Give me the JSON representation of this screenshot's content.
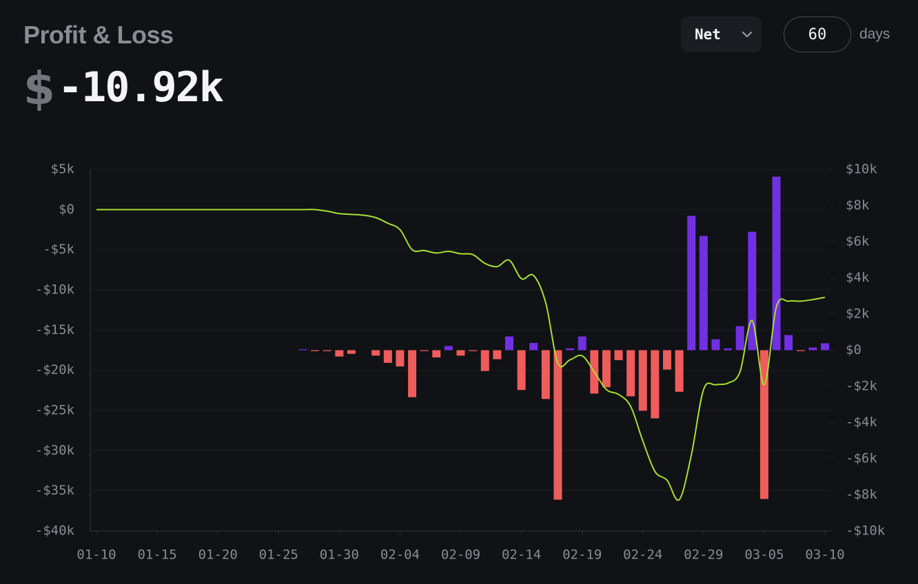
{
  "header": {
    "title": "Profit & Loss",
    "currency": "$",
    "total": "-10.92k"
  },
  "controls": {
    "mode": "Net",
    "days": "60",
    "days_unit": "days"
  },
  "chart_data": {
    "type": "bar",
    "x": [
      "01-10",
      "01-11",
      "01-12",
      "01-13",
      "01-14",
      "01-15",
      "01-16",
      "01-17",
      "01-18",
      "01-19",
      "01-20",
      "01-21",
      "01-22",
      "01-23",
      "01-24",
      "01-25",
      "01-26",
      "01-27",
      "01-28",
      "01-29",
      "01-30",
      "01-31",
      "02-01",
      "02-02",
      "02-03",
      "02-04",
      "02-05",
      "02-06",
      "02-07",
      "02-08",
      "02-09",
      "02-10",
      "02-11",
      "02-12",
      "02-13",
      "02-14",
      "02-15",
      "02-16",
      "02-17",
      "02-18",
      "02-19",
      "02-20",
      "02-21",
      "02-22",
      "02-23",
      "02-24",
      "02-25",
      "02-26",
      "02-27",
      "02-28",
      "02-29",
      "03-01",
      "03-02",
      "03-03",
      "03-04",
      "03-05",
      "03-06",
      "03-07",
      "03-08",
      "03-09",
      "03-10"
    ],
    "xticks": [
      "01-10",
      "01-15",
      "01-20",
      "01-25",
      "01-30",
      "02-04",
      "02-09",
      "02-14",
      "02-19",
      "02-24",
      "02-29",
      "03-05",
      "03-10"
    ],
    "ylim": [
      -40000,
      5000
    ],
    "yticks": [
      {
        "value": 5000,
        "label": "$5k"
      },
      {
        "value": 0,
        "label": "$0"
      },
      {
        "value": -5000,
        "label": "-$5k"
      },
      {
        "value": -10000,
        "label": "-$10k"
      },
      {
        "value": -15000,
        "label": "-$15k"
      },
      {
        "value": -20000,
        "label": "-$20k"
      },
      {
        "value": -25000,
        "label": "-$25k"
      },
      {
        "value": -30000,
        "label": "-$30k"
      },
      {
        "value": -35000,
        "label": "-$35k"
      },
      {
        "value": -40000,
        "label": "-$40k"
      }
    ],
    "y2lim": [
      -10000,
      10000
    ],
    "y2ticks": [
      {
        "value": 10000,
        "label": "$10k"
      },
      {
        "value": 8000,
        "label": "$8k"
      },
      {
        "value": 6000,
        "label": "$6k"
      },
      {
        "value": 4000,
        "label": "$4k"
      },
      {
        "value": 2000,
        "label": "$2k"
      },
      {
        "value": 0,
        "label": "$0"
      },
      {
        "value": -2000,
        "label": "-$2k"
      },
      {
        "value": -4000,
        "label": "-$4k"
      },
      {
        "value": -6000,
        "label": "-$6k"
      },
      {
        "value": -8000,
        "label": "-$8k"
      },
      {
        "value": -10000,
        "label": "-$10k"
      }
    ],
    "grid": true,
    "series": [
      {
        "type": "bar",
        "axis": "y2",
        "color": "#7130e3",
        "negative_color": "#ee5d5b",
        "values": [
          null,
          null,
          null,
          null,
          null,
          null,
          null,
          null,
          null,
          null,
          null,
          null,
          null,
          null,
          null,
          null,
          null,
          50,
          -50,
          -50,
          -350,
          -200,
          null,
          -300,
          -700,
          -900,
          -2600,
          -50,
          -400,
          230,
          -300,
          -50,
          -1150,
          -500,
          760,
          -2200,
          400,
          -2700,
          -8270,
          100,
          760,
          -2400,
          -2050,
          -550,
          -2550,
          -3350,
          -3770,
          -1070,
          -2300,
          7430,
          6320,
          600,
          100,
          1330,
          6550,
          -8230,
          9600,
          840,
          -50,
          150,
          380
        ]
      },
      {
        "type": "line",
        "color": "#a8e032",
        "values": [
          0,
          0,
          0,
          0,
          0,
          0,
          0,
          0,
          0,
          0,
          0,
          0,
          0,
          0,
          0,
          0,
          0,
          0,
          0,
          -200,
          -500,
          -600,
          -700,
          -1000,
          -1700,
          -2500,
          -5000,
          -5100,
          -5400,
          -5200,
          -5500,
          -5600,
          -6700,
          -7100,
          -6300,
          -8600,
          -8200,
          -11600,
          -19100,
          -18700,
          -18200,
          -20200,
          -22400,
          -23000,
          -24500,
          -28800,
          -32600,
          -33700,
          -36100,
          -30500,
          -22400,
          -21800,
          -21600,
          -20200,
          -13800,
          -21800,
          -12100,
          -11400,
          -11400,
          -11200,
          -10920
        ]
      }
    ]
  }
}
